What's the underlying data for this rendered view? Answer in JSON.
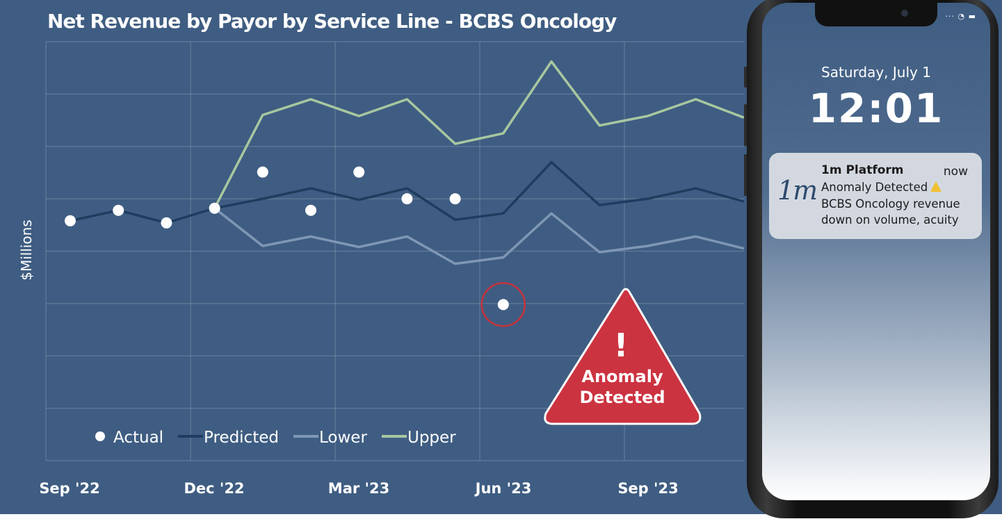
{
  "title": "Net Revenue by Payor by Service Line - BCBS Oncology",
  "chart_data": {
    "type": "line",
    "title": "Net Revenue by Payor by Service Line - BCBS Oncology",
    "ylabel": "$Millions",
    "xlabel": "",
    "x_tick_labels": [
      "Sep '22",
      "Dec '22",
      "Mar '23",
      "Jun '23",
      "Sep '23"
    ],
    "x_tick_indices": [
      0,
      3,
      6,
      9,
      12
    ],
    "n_points": 15,
    "y_grid_lines": 8,
    "ylim": [
      0,
      8
    ],
    "grid": true,
    "legend_placement": "bottom-left",
    "series": [
      {
        "name": "Actual",
        "type": "scatter",
        "color": "#ffffff",
        "points": [
          [
            0,
            4.58
          ],
          [
            1,
            4.78
          ],
          [
            2,
            4.54
          ],
          [
            3,
            4.82
          ],
          [
            4,
            5.51
          ],
          [
            5,
            4.78
          ],
          [
            6,
            5.51
          ],
          [
            7,
            5.0
          ],
          [
            8,
            5.0
          ],
          [
            9,
            2.98
          ]
        ]
      },
      {
        "name": "Predicted",
        "type": "line",
        "color": "#1e3d5e",
        "values": [
          4.58,
          4.78,
          4.54,
          4.82,
          5.0,
          5.2,
          4.98,
          5.2,
          4.6,
          4.72,
          5.7,
          4.88,
          5.0,
          5.2,
          4.95
        ]
      },
      {
        "name": "Lower",
        "type": "line",
        "color": "#7f97b5",
        "start_index": 3,
        "values": [
          4.82,
          4.1,
          4.28,
          4.08,
          4.28,
          3.76,
          3.88,
          4.72,
          3.98,
          4.1,
          4.28,
          4.05
        ]
      },
      {
        "name": "Upper",
        "type": "line",
        "color": "#a8c7a0",
        "start_index": 3,
        "values": [
          4.82,
          6.6,
          6.9,
          6.58,
          6.9,
          6.05,
          6.25,
          7.62,
          6.4,
          6.58,
          6.9,
          6.55
        ]
      }
    ],
    "annotation": {
      "index": 9,
      "value": 2.98,
      "ring_color": "#c8323c"
    }
  },
  "warning": {
    "symbol": "!",
    "line1": "Anomaly",
    "line2": "Detected",
    "color": "#cc3340"
  },
  "phone": {
    "date": "Saturday, July 1",
    "time": "12:01",
    "status_icons": "··· ◔ ▬",
    "notification": {
      "logo": "1m",
      "app": "1m Platform",
      "when": "now",
      "line1": "Anomaly Detected",
      "line2": "BCBS Oncology revenue",
      "line3": "down on volume, acuity"
    }
  }
}
